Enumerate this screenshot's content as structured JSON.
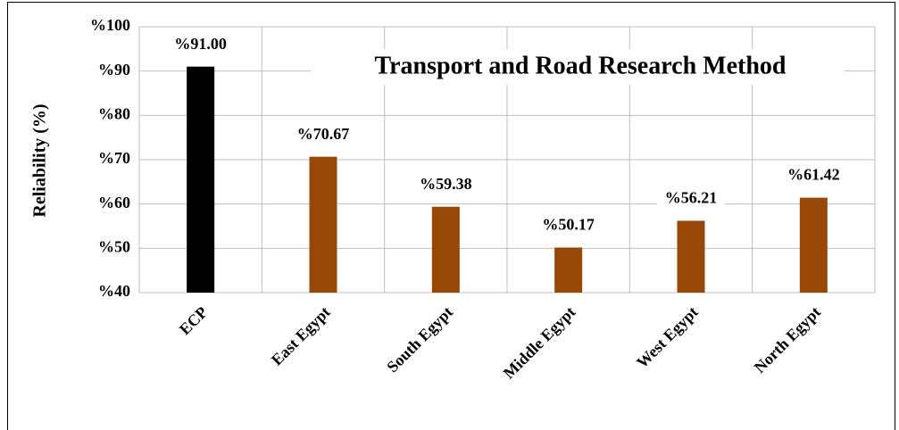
{
  "chart_data": {
    "type": "bar",
    "title": "Transport and Road Research Method",
    "y_label": "Reliability (%)",
    "categories": [
      "ECP",
      "East Egypt",
      "South Egypt",
      "Middle Egypt",
      "West Egypt",
      "North Egypt"
    ],
    "values": [
      91.0,
      70.67,
      59.38,
      50.17,
      56.21,
      61.42
    ],
    "value_labels": [
      "%91.00",
      "%70.67",
      "%59.38",
      "%50.17",
      "%56.21",
      "%61.42"
    ],
    "colors": [
      "#000000",
      "#974706",
      "#974706",
      "#974706",
      "#974706",
      "#974706"
    ],
    "ylim": [
      40,
      100
    ],
    "yticks": [
      {
        "value": 40,
        "label": "%40"
      },
      {
        "value": 50,
        "label": "%50"
      },
      {
        "value": 60,
        "label": "%60"
      },
      {
        "value": 70,
        "label": "%70"
      },
      {
        "value": 80,
        "label": "%80"
      },
      {
        "value": 90,
        "label": "%90"
      },
      {
        "value": 100,
        "label": "%100"
      }
    ],
    "grid": true
  }
}
